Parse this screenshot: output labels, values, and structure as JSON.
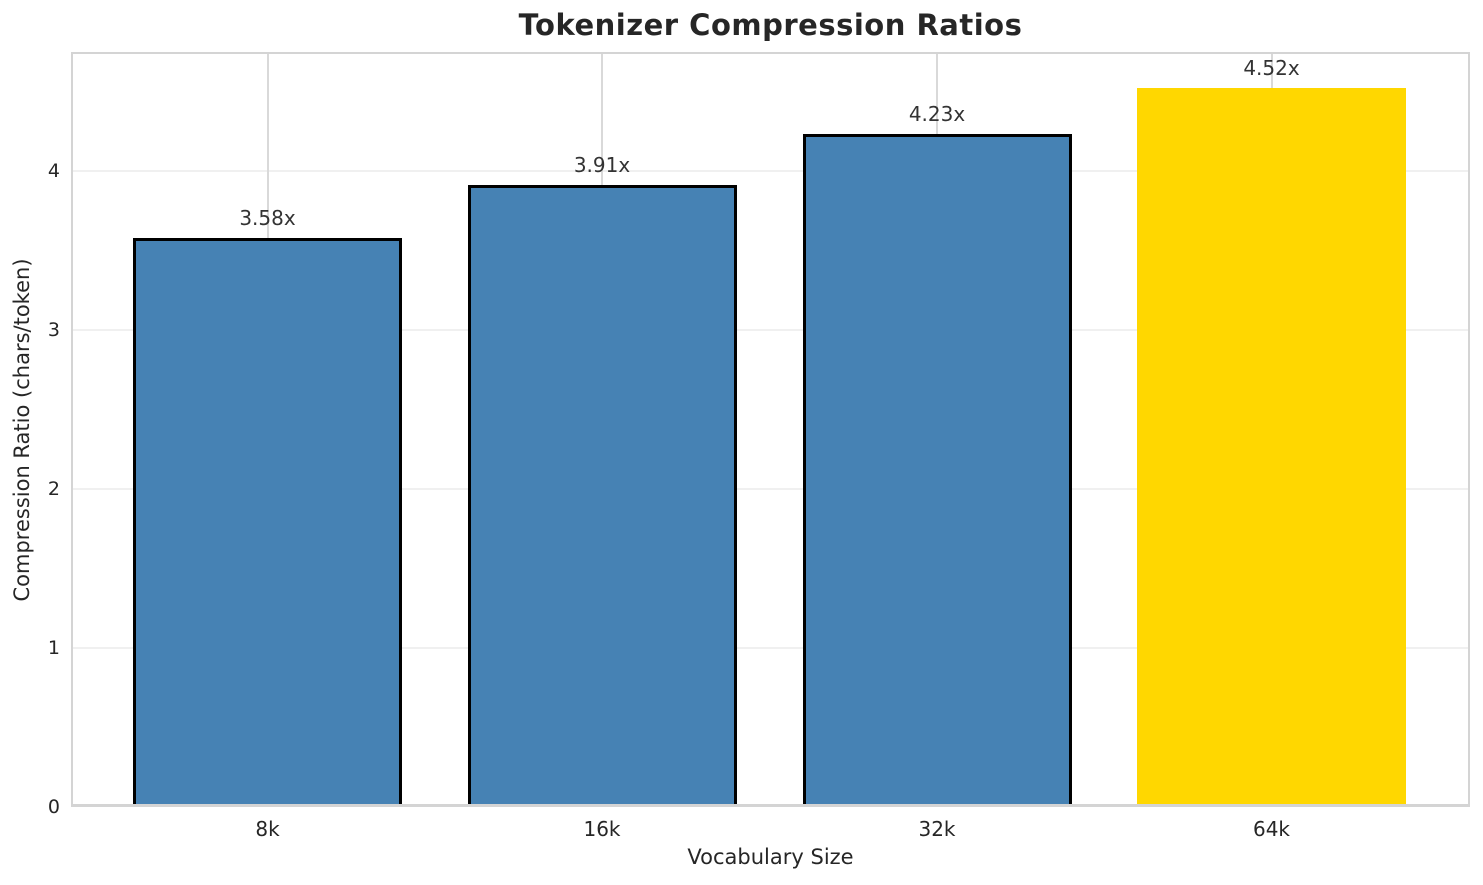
{
  "chart_data": {
    "type": "bar",
    "title": "Tokenizer Compression Ratios",
    "xlabel": "Vocabulary Size",
    "ylabel": "Compression Ratio (chars/token)",
    "categories": [
      "8k",
      "16k",
      "32k",
      "64k"
    ],
    "values": [
      3.58,
      3.91,
      4.23,
      4.52
    ],
    "bar_labels": [
      "3.58x",
      "3.91x",
      "4.23x",
      "4.52x"
    ],
    "bar_colors": [
      "#4682B4",
      "#4682B4",
      "#4682B4",
      "#FFD700"
    ],
    "bar_edge_colors": [
      "#000000",
      "#000000",
      "#000000",
      "none"
    ],
    "yticks": [
      "0",
      "1",
      "2",
      "3",
      "4"
    ],
    "ytick_values": [
      0,
      1,
      2,
      3,
      4
    ],
    "ylim": [
      0,
      4.75
    ],
    "grid": true,
    "legend_position": "none",
    "highlighted_category": "64k"
  },
  "colors": {
    "background": "#ffffff",
    "bar_blue": "#4682B4",
    "bar_gold": "#FFD700",
    "bar_edge": "#000000",
    "spine": "#d4d4d4",
    "grid_horizontal": "#f0f0f0",
    "grid_vertical": "#d9d9d9",
    "text": "#262626"
  }
}
